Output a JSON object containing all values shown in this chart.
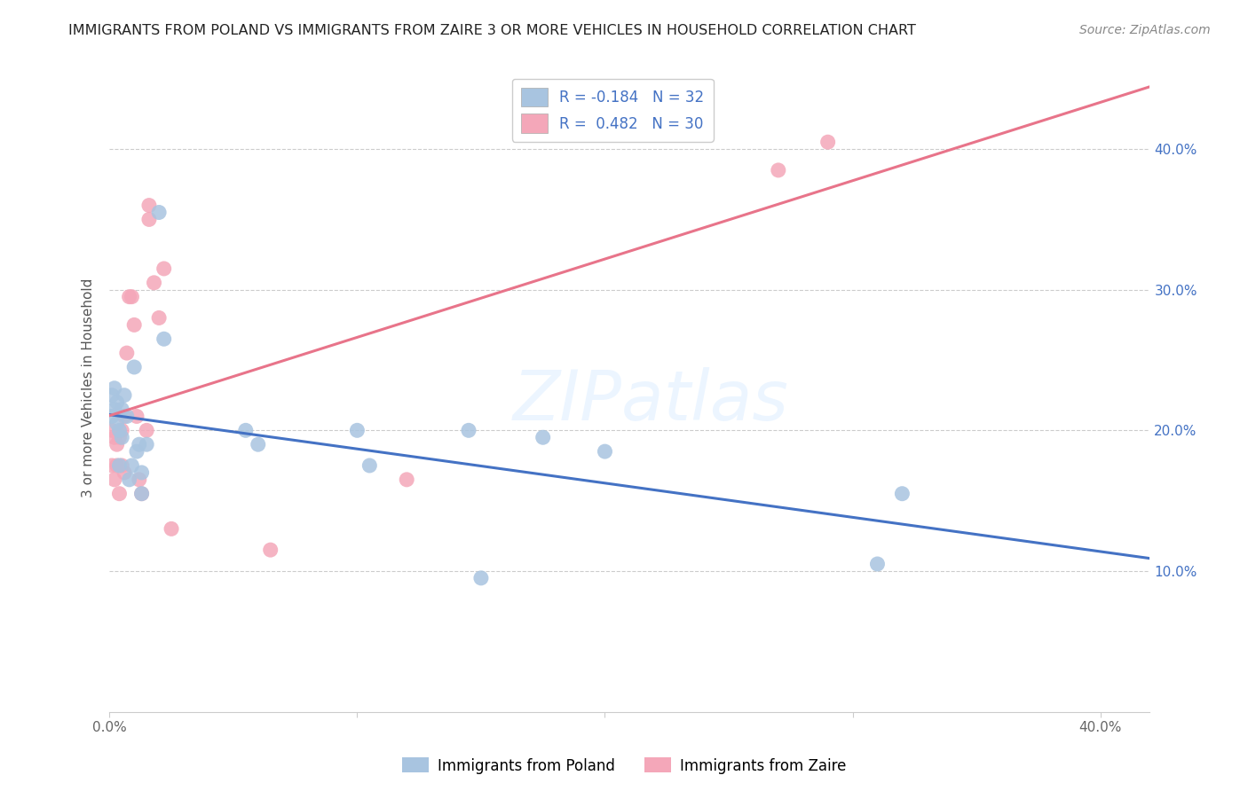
{
  "title": "IMMIGRANTS FROM POLAND VS IMMIGRANTS FROM ZAIRE 3 OR MORE VEHICLES IN HOUSEHOLD CORRELATION CHART",
  "source": "Source: ZipAtlas.com",
  "ylabel": "3 or more Vehicles in Household",
  "xlim": [
    0.0,
    0.42
  ],
  "ylim": [
    0.0,
    0.46
  ],
  "xtick_vals": [
    0.0,
    0.1,
    0.2,
    0.3,
    0.4
  ],
  "xtick_labels": [
    "0.0%",
    "",
    "",
    "",
    "40.0%"
  ],
  "ytick_vals": [
    0.1,
    0.2,
    0.3,
    0.4
  ],
  "ytick_labels": [
    "10.0%",
    "20.0%",
    "30.0%",
    "40.0%"
  ],
  "poland_R": -0.184,
  "poland_N": 32,
  "zaire_R": 0.482,
  "zaire_N": 30,
  "poland_color": "#a8c4e0",
  "zaire_color": "#f4a7b9",
  "poland_line_color": "#4472c4",
  "zaire_line_color": "#e8748a",
  "background_color": "#ffffff",
  "grid_color": "#cccccc",
  "watermark": "ZIPatlas",
  "poland_x": [
    0.001,
    0.001,
    0.002,
    0.002,
    0.003,
    0.003,
    0.004,
    0.004,
    0.005,
    0.005,
    0.006,
    0.007,
    0.008,
    0.009,
    0.01,
    0.011,
    0.012,
    0.013,
    0.013,
    0.015,
    0.02,
    0.022,
    0.055,
    0.06,
    0.1,
    0.105,
    0.145,
    0.15,
    0.175,
    0.2,
    0.31,
    0.32
  ],
  "poland_y": [
    0.21,
    0.225,
    0.215,
    0.23,
    0.205,
    0.22,
    0.2,
    0.175,
    0.195,
    0.215,
    0.225,
    0.21,
    0.165,
    0.175,
    0.245,
    0.185,
    0.19,
    0.17,
    0.155,
    0.19,
    0.355,
    0.265,
    0.2,
    0.19,
    0.2,
    0.175,
    0.2,
    0.095,
    0.195,
    0.185,
    0.105,
    0.155
  ],
  "zaire_x": [
    0.001,
    0.001,
    0.002,
    0.002,
    0.003,
    0.003,
    0.004,
    0.004,
    0.005,
    0.005,
    0.006,
    0.006,
    0.007,
    0.008,
    0.009,
    0.01,
    0.011,
    0.012,
    0.013,
    0.015,
    0.016,
    0.016,
    0.018,
    0.02,
    0.022,
    0.025,
    0.065,
    0.12,
    0.27,
    0.29
  ],
  "zaire_y": [
    0.2,
    0.175,
    0.195,
    0.165,
    0.19,
    0.175,
    0.195,
    0.155,
    0.175,
    0.2,
    0.21,
    0.17,
    0.255,
    0.295,
    0.295,
    0.275,
    0.21,
    0.165,
    0.155,
    0.2,
    0.35,
    0.36,
    0.305,
    0.28,
    0.315,
    0.13,
    0.115,
    0.165,
    0.385,
    0.405
  ]
}
